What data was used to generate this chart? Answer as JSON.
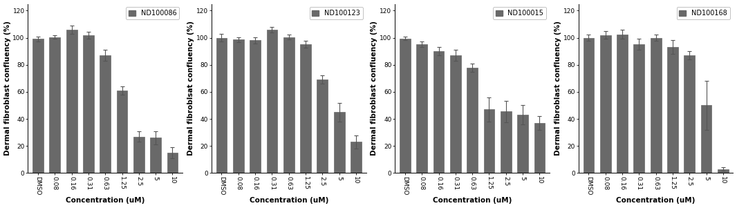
{
  "panels": [
    {
      "label": "ND100086",
      "categories": [
        "DMSO",
        "0.08",
        "0.16",
        "0.31",
        "0.63",
        "1.25",
        "2.5",
        "5",
        "10"
      ],
      "values": [
        99,
        100.5,
        106,
        102,
        87,
        61,
        27,
        26,
        15
      ],
      "errors": [
        2,
        1.5,
        3,
        2.5,
        4,
        3,
        4,
        5,
        4
      ],
      "ylabel": "Dermal fibroblast confluency (%)"
    },
    {
      "label": "ND100123",
      "categories": [
        "DMSO",
        "0.08",
        "0.16",
        "0.31",
        "0.63",
        "1.25",
        "2.5",
        "5",
        "10"
      ],
      "values": [
        100,
        98.5,
        98,
        106,
        100.5,
        95,
        69,
        45,
        23
      ],
      "errors": [
        3,
        2,
        2.5,
        2,
        2,
        2.5,
        3,
        7,
        5
      ],
      "ylabel": "Dermal fibroblsat confluency (%)"
    },
    {
      "label": "ND100015",
      "categories": [
        "DMSO",
        "0.08",
        "0.16",
        "0.31",
        "0.63",
        "1.25",
        "2.5",
        "5",
        "10"
      ],
      "values": [
        99.5,
        95,
        90,
        87,
        78,
        47,
        45.5,
        43,
        37
      ],
      "errors": [
        1.5,
        2,
        3,
        4,
        3,
        9,
        8,
        7,
        5
      ],
      "ylabel": "Dermal fibroblast confluency (%)"
    },
    {
      "label": "ND100168",
      "categories": [
        "DMSO",
        "0.08",
        "0.16",
        "0.31",
        "0.63",
        "1.25",
        "2.5",
        "5",
        "10"
      ],
      "values": [
        100,
        102,
        102.5,
        95,
        100,
        93,
        87,
        50,
        3
      ],
      "errors": [
        2.5,
        3,
        3.5,
        4,
        2.5,
        5,
        3,
        18,
        1.5
      ],
      "ylabel": "Dermal fibroblast confluency (%)"
    }
  ],
  "xlabel": "Concentration (uM)",
  "ylim": [
    0,
    125
  ],
  "yticks": [
    0,
    20,
    40,
    60,
    80,
    100,
    120
  ],
  "bar_color": "#696969",
  "bar_edge_color": "#696969",
  "background_color": "#ffffff",
  "tick_fontsize": 6.5,
  "label_fontsize": 7.5,
  "legend_fontsize": 7
}
